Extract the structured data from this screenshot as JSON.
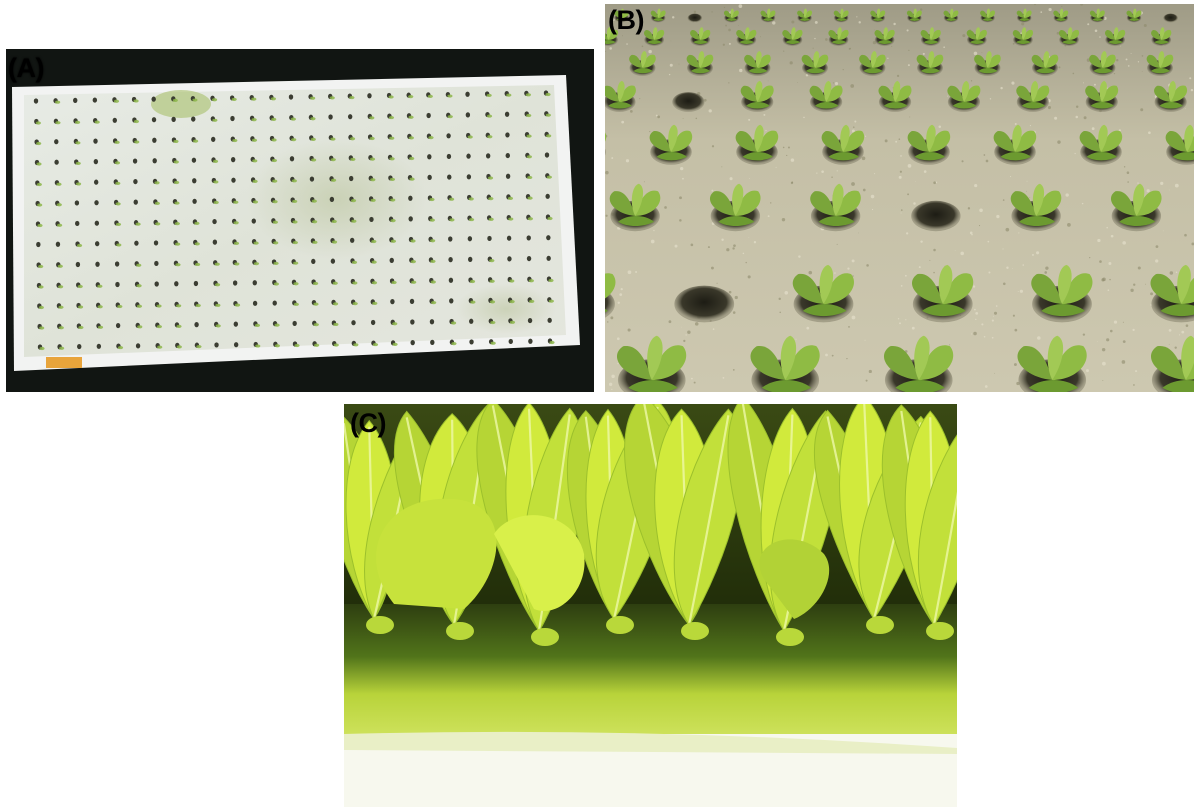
{
  "figure": {
    "panels": [
      {
        "id": "A",
        "label": "(A)",
        "content": "seedling-tray-photo"
      },
      {
        "id": "B",
        "label": "(B)",
        "content": "lettuce-seedlings-closeup-photo"
      },
      {
        "id": "C",
        "label": "(C)",
        "content": "lettuce-seedlings-side-view-photo"
      }
    ]
  },
  "colors": {
    "background": "#ffffff",
    "tray_dark": "#0f1210",
    "tray_white": "#e9ece6",
    "foam": "#c9c4ab",
    "leaf_green": "#7fb335",
    "leaf_yellow": "#d4ec3a",
    "label": "#000000"
  }
}
